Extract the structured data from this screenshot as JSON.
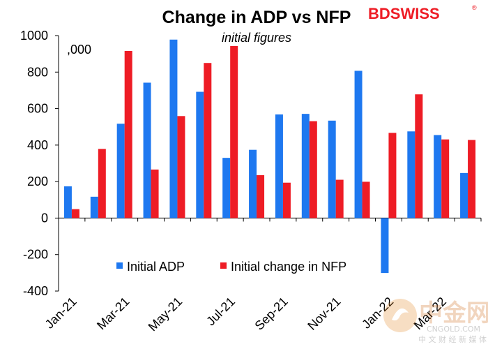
{
  "brand": {
    "name": "BDSWISS"
  },
  "watermark": {
    "name": "中金网",
    "url": "CNGOLD.COM",
    "tagline": "中 文 财 经 新 媒 体"
  },
  "chart_data": {
    "type": "bar",
    "title": "Change in ADP vs NFP",
    "subtitle": "initial figures",
    "unit_label": ",000",
    "xlabel": "",
    "ylabel": "",
    "ylim": [
      -400,
      1000
    ],
    "yticks": [
      -400,
      -200,
      0,
      200,
      400,
      600,
      800,
      1000
    ],
    "ytick_labels": [
      "-400",
      "-200",
      "0",
      "200",
      "400",
      "600",
      "800",
      "1000"
    ],
    "categories": [
      "Jan-21",
      "Feb-21",
      "Mar-21",
      "Apr-21",
      "May-21",
      "Jun-21",
      "Jul-21",
      "Aug-21",
      "Sep-21",
      "Oct-21",
      "Nov-21",
      "Dec-21",
      "Jan-22",
      "Feb-22",
      "Mar-22",
      "Apr-22"
    ],
    "xtick_labels": [
      "Jan-21",
      "Mar-21",
      "May-21",
      "Jul-21",
      "Sep-21",
      "Nov-21",
      "Jan-22",
      "Mar-22"
    ],
    "xtick_indices": [
      0,
      2,
      4,
      6,
      8,
      10,
      12,
      14
    ],
    "legend_position": "lower-center",
    "series": [
      {
        "name": "Initial ADP",
        "color": "#1e78f0",
        "values": [
          174,
          117,
          517,
          742,
          978,
          692,
          330,
          374,
          568,
          571,
          534,
          807,
          -301,
          475,
          455,
          247
        ]
      },
      {
        "name": "Initial change in NFP",
        "color": "#ee1c25",
        "values": [
          49,
          379,
          916,
          266,
          559,
          850,
          943,
          235,
          194,
          531,
          210,
          199,
          467,
          678,
          431,
          428
        ]
      }
    ]
  }
}
